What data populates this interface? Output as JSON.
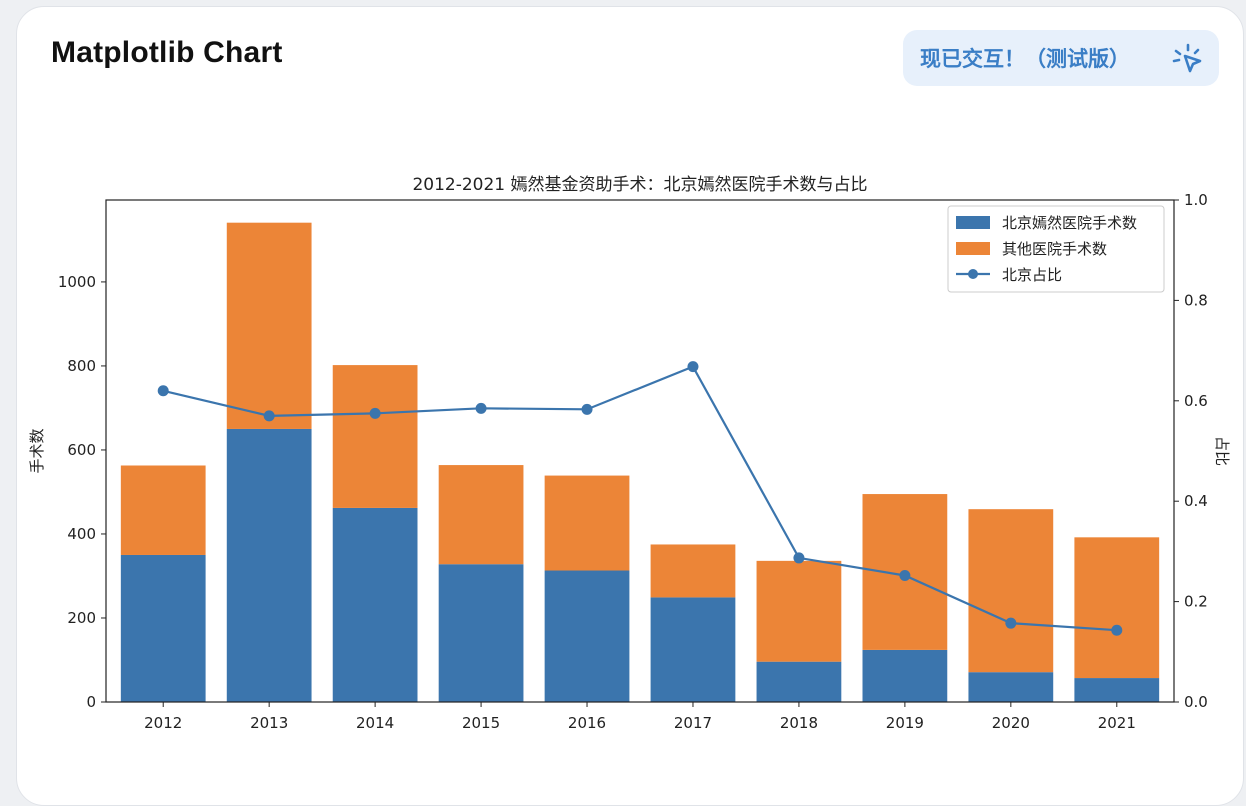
{
  "header": {
    "title": "Matplotlib Chart",
    "interactive_badge": "现已交互！（测试版）",
    "badge_icon": "cursor-click-icon"
  },
  "colors": {
    "beijing_bar": "#3b75ad",
    "other_bar": "#ec8537",
    "ratio_line": "#3b75ad",
    "badge_text": "#3a7ec6",
    "badge_bg": "#e7f0fb"
  },
  "chart_data": {
    "type": "bar",
    "stacked": true,
    "title": "2012-2021 嫣然基金资助手术：北京嫣然医院手术数与占比",
    "xlabel": "",
    "ylabel": "手术数",
    "y2label": "占比",
    "categories": [
      "2012",
      "2013",
      "2014",
      "2015",
      "2016",
      "2017",
      "2018",
      "2019",
      "2020",
      "2021"
    ],
    "ylim": [
      0,
      1195
    ],
    "yticks": [
      0,
      200,
      400,
      600,
      800,
      1000
    ],
    "y2lim": [
      0,
      1.0
    ],
    "y2ticks": [
      "0.0",
      "0.2",
      "0.4",
      "0.6",
      "0.8",
      "1.0"
    ],
    "series": [
      {
        "name": "北京嫣然医院手术数",
        "type": "bar",
        "values": [
          350,
          650,
          462,
          328,
          313,
          249,
          96,
          124,
          71,
          57
        ]
      },
      {
        "name": "其他医院手术数",
        "type": "bar",
        "values": [
          213,
          491,
          340,
          236,
          226,
          126,
          240,
          371,
          388,
          335
        ]
      },
      {
        "name": "北京占比",
        "type": "line",
        "axis": "right",
        "marker": "circle",
        "values": [
          0.62,
          0.57,
          0.575,
          0.585,
          0.583,
          0.668,
          0.287,
          0.252,
          0.157,
          0.143
        ]
      }
    ],
    "legend": "top-right",
    "grid": false
  }
}
